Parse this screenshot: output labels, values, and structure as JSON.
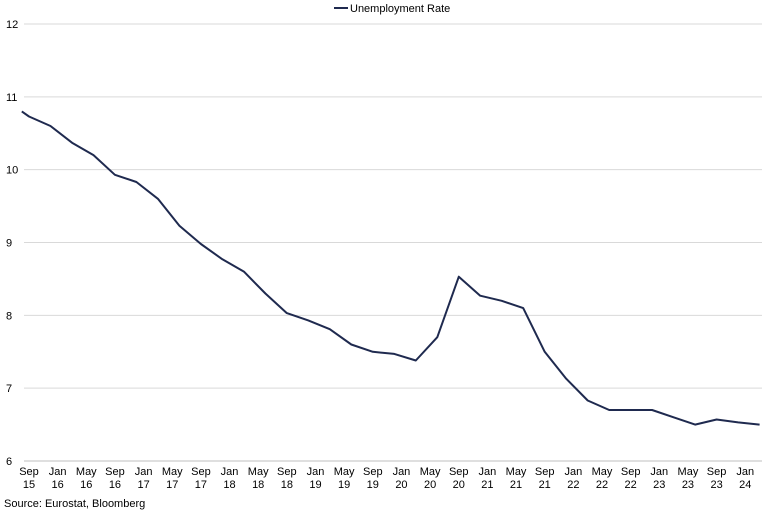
{
  "chart_data": {
    "type": "line",
    "title": "",
    "xlabel": "",
    "ylabel": "",
    "ylim": [
      6,
      12
    ],
    "yticks": [
      "6",
      "7",
      "8",
      "9",
      "10",
      "11",
      "12"
    ],
    "grid": "horizontal",
    "legend_position": "top-center",
    "series_color": "#1f2a4f",
    "x_tick_labels": [
      {
        "month": "Sep",
        "year": "15"
      },
      {
        "month": "Jan",
        "year": "16"
      },
      {
        "month": "May",
        "year": "16"
      },
      {
        "month": "Sep",
        "year": "16"
      },
      {
        "month": "Jan",
        "year": "17"
      },
      {
        "month": "May",
        "year": "17"
      },
      {
        "month": "Sep",
        "year": "17"
      },
      {
        "month": "Jan",
        "year": "18"
      },
      {
        "month": "May",
        "year": "18"
      },
      {
        "month": "Sep",
        "year": "18"
      },
      {
        "month": "Jan",
        "year": "19"
      },
      {
        "month": "May",
        "year": "19"
      },
      {
        "month": "Sep",
        "year": "19"
      },
      {
        "month": "Jan",
        "year": "20"
      },
      {
        "month": "May",
        "year": "20"
      },
      {
        "month": "Sep",
        "year": "20"
      },
      {
        "month": "Jan",
        "year": "21"
      },
      {
        "month": "May",
        "year": "21"
      },
      {
        "month": "Sep",
        "year": "21"
      },
      {
        "month": "Jan",
        "year": "22"
      },
      {
        "month": "May",
        "year": "22"
      },
      {
        "month": "Sep",
        "year": "22"
      },
      {
        "month": "Jan",
        "year": "23"
      },
      {
        "month": "May",
        "year": "23"
      },
      {
        "month": "Sep",
        "year": "23"
      },
      {
        "month": "Jan",
        "year": "24"
      }
    ],
    "series": [
      {
        "name": "Unemployment Rate",
        "x": [
          "2015-08",
          "2015-09",
          "2015-12",
          "2016-03",
          "2016-06",
          "2016-09",
          "2016-12",
          "2017-03",
          "2017-06",
          "2017-09",
          "2017-12",
          "2018-03",
          "2018-06",
          "2018-09",
          "2018-12",
          "2019-03",
          "2019-06",
          "2019-09",
          "2019-12",
          "2020-03",
          "2020-06",
          "2020-09",
          "2020-12",
          "2021-03",
          "2021-06",
          "2021-09",
          "2021-12",
          "2022-03",
          "2022-06",
          "2022-09",
          "2022-12",
          "2023-03",
          "2023-06",
          "2023-09",
          "2023-12",
          "2024-03"
        ],
        "values": [
          10.8,
          10.73,
          10.6,
          10.37,
          10.2,
          9.93,
          9.83,
          9.6,
          9.23,
          8.98,
          8.77,
          8.6,
          8.3,
          8.03,
          7.93,
          7.81,
          7.6,
          7.5,
          7.47,
          7.38,
          7.7,
          8.53,
          8.27,
          8.2,
          8.1,
          7.5,
          7.13,
          6.83,
          6.7,
          6.7,
          6.7,
          6.6,
          6.5,
          6.57,
          6.53,
          6.5
        ]
      }
    ]
  },
  "source": "Source: Eurostat, Bloomberg"
}
